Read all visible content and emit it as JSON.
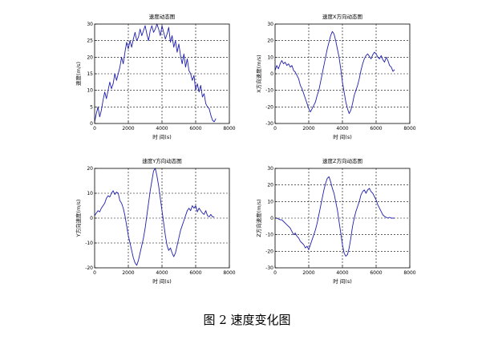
{
  "caption": "图 2 速度变化图",
  "colors": {
    "line": "#1f1fb0",
    "axes": "#000000",
    "grid": "#000000",
    "background": "#ffffff"
  },
  "chart_data": [
    {
      "type": "line",
      "title": "速度动态图",
      "xlabel": "时 间(s)",
      "ylabel": "速度(m/s)",
      "xlim": [
        0,
        8000
      ],
      "ylim": [
        0,
        30
      ],
      "xticks": [
        0,
        2000,
        4000,
        6000,
        8000
      ],
      "yticks": [
        0,
        5,
        10,
        15,
        20,
        25,
        30
      ],
      "grid": true,
      "series": [
        {
          "x": [
            0,
            100,
            200,
            300,
            400,
            500,
            600,
            700,
            800,
            900,
            1000,
            1100,
            1200,
            1300,
            1400,
            1500,
            1600,
            1700,
            1800,
            1900,
            2000,
            2100,
            2200,
            2300,
            2400,
            2500,
            2600,
            2700,
            2800,
            2900,
            3000,
            3100,
            3200,
            3300,
            3400,
            3500,
            3600,
            3700,
            3800,
            3900,
            4000,
            4100,
            4200,
            4300,
            4400,
            4500,
            4600,
            4700,
            4800,
            4900,
            5000,
            5100,
            5200,
            5300,
            5400,
            5500,
            5600,
            5700,
            5800,
            5900,
            6000,
            6100,
            6200,
            6300,
            6400,
            6500,
            6600,
            6700,
            6800,
            6900,
            7000,
            7100,
            7200
          ],
          "y": [
            0.5,
            3,
            5,
            2,
            4,
            7,
            9.5,
            7.5,
            10,
            12.5,
            10.5,
            12,
            15,
            13,
            15,
            17,
            20,
            18,
            21.5,
            24.5,
            22.5,
            25,
            23,
            25.5,
            27.5,
            25,
            26,
            28.5,
            26.5,
            28,
            29.5,
            27,
            25,
            28,
            29.5,
            27.5,
            28.5,
            30,
            28.5,
            26.5,
            29.5,
            27.5,
            25.5,
            27,
            29,
            24.5,
            26.5,
            23,
            25,
            21.5,
            24,
            20.5,
            18,
            21,
            17,
            19.5,
            16,
            15,
            13,
            14.5,
            10,
            12,
            9.5,
            11.5,
            8,
            9,
            6,
            5,
            4.5,
            2.5,
            1,
            0.5,
            1.5
          ]
        }
      ]
    },
    {
      "type": "line",
      "title": "速度X方向动态图",
      "xlabel": "时 间(s)",
      "ylabel": "X方向速度(m/s)",
      "xlim": [
        0,
        8000
      ],
      "ylim": [
        -30,
        30
      ],
      "xticks": [
        0,
        2000,
        4000,
        6000,
        8000
      ],
      "yticks": [
        -30,
        -20,
        -10,
        0,
        10,
        20,
        30
      ],
      "grid": true,
      "series": [
        {
          "x": [
            0,
            100,
            200,
            300,
            400,
            500,
            600,
            700,
            800,
            900,
            1000,
            1100,
            1200,
            1300,
            1400,
            1500,
            1600,
            1700,
            1800,
            1900,
            2000,
            2100,
            2200,
            2300,
            2400,
            2500,
            2600,
            2700,
            2800,
            2900,
            3000,
            3100,
            3200,
            3300,
            3400,
            3500,
            3600,
            3700,
            3800,
            3900,
            4000,
            4100,
            4200,
            4300,
            4400,
            4500,
            4600,
            4700,
            4800,
            4900,
            5000,
            5100,
            5200,
            5300,
            5400,
            5500,
            5600,
            5700,
            5800,
            5900,
            6000,
            6100,
            6200,
            6300,
            6400,
            6500,
            6600,
            6700,
            6800,
            6900,
            7000,
            7100
          ],
          "y": [
            2,
            5,
            3,
            6,
            8,
            6,
            7,
            5,
            6,
            4,
            5,
            2,
            1,
            -1,
            -3,
            -7,
            -9,
            -12,
            -15,
            -18,
            -21,
            -23,
            -21,
            -19,
            -17,
            -13,
            -10,
            -5,
            0,
            5,
            10,
            15,
            19,
            23,
            25.5,
            24,
            20,
            15,
            10,
            3,
            -5,
            -11,
            -17,
            -21,
            -24,
            -22,
            -18,
            -13,
            -10,
            -7,
            -3,
            2,
            6,
            9,
            11,
            12,
            10.5,
            9,
            11.5,
            13,
            12,
            10,
            9,
            11,
            8.5,
            7,
            10,
            8,
            5,
            4,
            1.5,
            2.5
          ]
        }
      ]
    },
    {
      "type": "line",
      "title": "速度Y方向动态图",
      "xlabel": "时 间(s)",
      "ylabel": "Y方向速度(m/s)",
      "xlim": [
        0,
        8000
      ],
      "ylim": [
        -20,
        20
      ],
      "xticks": [
        0,
        2000,
        4000,
        6000,
        8000
      ],
      "yticks": [
        -20,
        -10,
        0,
        10,
        20
      ],
      "grid": true,
      "series": [
        {
          "x": [
            0,
            100,
            200,
            300,
            400,
            500,
            600,
            700,
            800,
            900,
            1000,
            1100,
            1200,
            1300,
            1400,
            1500,
            1600,
            1700,
            1800,
            1900,
            2000,
            2100,
            2200,
            2300,
            2400,
            2500,
            2600,
            2700,
            2800,
            2900,
            3000,
            3100,
            3200,
            3300,
            3400,
            3500,
            3600,
            3700,
            3800,
            3900,
            4000,
            4100,
            4200,
            4300,
            4400,
            4500,
            4600,
            4700,
            4800,
            4900,
            5000,
            5100,
            5200,
            5300,
            5400,
            5500,
            5600,
            5700,
            5800,
            5900,
            6000,
            6100,
            6200,
            6300,
            6400,
            6500,
            6600,
            6700,
            6800,
            6900,
            7000,
            7100
          ],
          "y": [
            1,
            2,
            3,
            2.5,
            4,
            5,
            6,
            8,
            9,
            8.5,
            10,
            11,
            9.5,
            10.5,
            10,
            7,
            6,
            4,
            1,
            -3,
            -7,
            -10,
            -13,
            -16,
            -18,
            -19,
            -17,
            -14,
            -11,
            -8,
            -4,
            1,
            6,
            11,
            15,
            19,
            20,
            17,
            13,
            8,
            3,
            -2,
            -7,
            -11,
            -13,
            -12,
            -14,
            -15.5,
            -14,
            -11,
            -8,
            -5,
            -3,
            -1,
            1,
            3,
            4,
            3,
            5,
            4,
            5,
            2.5,
            4,
            3,
            2,
            1.5,
            3,
            1,
            0.5,
            1.5,
            0.5,
            0.5
          ]
        }
      ]
    },
    {
      "type": "line",
      "title": "速度Z方向动态图",
      "xlabel": "时 间(s)",
      "ylabel": "Z方向速度(m/s)",
      "xlim": [
        0,
        8000
      ],
      "ylim": [
        -30,
        30
      ],
      "xticks": [
        0,
        2000,
        4000,
        6000,
        8000
      ],
      "yticks": [
        -30,
        -20,
        -10,
        0,
        10,
        20,
        30
      ],
      "grid": true,
      "series": [
        {
          "x": [
            0,
            100,
            200,
            300,
            400,
            500,
            600,
            700,
            800,
            900,
            1000,
            1100,
            1200,
            1300,
            1400,
            1500,
            1600,
            1700,
            1800,
            1900,
            2000,
            2100,
            2200,
            2300,
            2400,
            2500,
            2600,
            2700,
            2800,
            2900,
            3000,
            3100,
            3200,
            3300,
            3400,
            3500,
            3600,
            3700,
            3800,
            3900,
            4000,
            4100,
            4200,
            4300,
            4400,
            4500,
            4600,
            4700,
            4800,
            4900,
            5000,
            5100,
            5200,
            5300,
            5400,
            5500,
            5600,
            5700,
            5800,
            5900,
            6000,
            6100,
            6200,
            6300,
            6400,
            6500,
            6600,
            6700,
            6800,
            6900,
            7000,
            7100
          ],
          "y": [
            0,
            0,
            -0.5,
            -1,
            -1,
            -2,
            -3,
            -4,
            -5,
            -6,
            -8,
            -10,
            -9,
            -11,
            -12,
            -14,
            -15,
            -16,
            -18,
            -17,
            -19,
            -16,
            -13,
            -10,
            -7,
            -3,
            2,
            7,
            12,
            17,
            21,
            24,
            25,
            22,
            18,
            15,
            10,
            5,
            -2,
            -9,
            -16,
            -21,
            -23,
            -22,
            -18,
            -12,
            -5,
            0,
            4,
            7,
            10,
            14,
            16,
            17,
            15,
            17,
            18,
            16,
            15,
            13,
            11,
            8,
            6,
            4,
            2,
            1,
            0.5,
            0,
            0.5,
            0,
            0,
            0
          ]
        }
      ]
    }
  ]
}
